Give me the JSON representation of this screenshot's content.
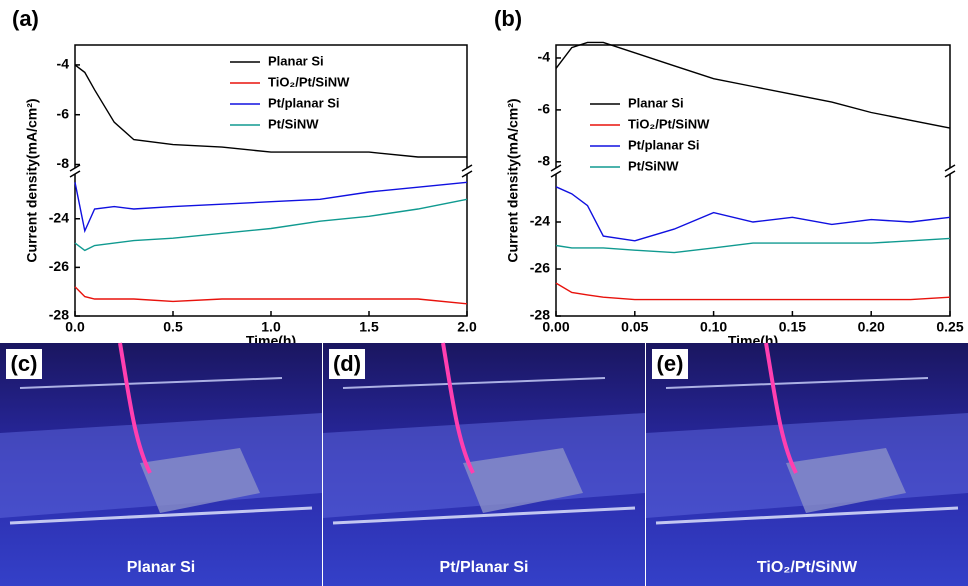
{
  "chart_data": [
    {
      "type": "line",
      "panel_label": "(a)",
      "x_label": "Time(h)",
      "y_label": "Current density(mA/cm²)",
      "x": [
        0,
        0.05,
        0.1,
        0.2,
        0.3,
        0.5,
        0.75,
        1.0,
        1.25,
        1.5,
        1.75,
        2.0
      ],
      "xlim": [
        0,
        2.0
      ],
      "xticks": [
        {
          "value": 0,
          "label": "0.0"
        },
        {
          "value": 0.5,
          "label": "0.5"
        },
        {
          "value": 1.0,
          "label": "1.0"
        },
        {
          "value": 1.5,
          "label": "1.5"
        },
        {
          "value": 2.0,
          "label": "2.0"
        }
      ],
      "ylim": [
        -28,
        -3.2
      ],
      "y_break": [
        -22.2,
        -8.1
      ],
      "yticks": [
        -28,
        -26,
        -24,
        -8,
        -6,
        -4
      ],
      "series": [
        {
          "name": "Planar Si",
          "color": "#000000",
          "values": [
            -4.0,
            -4.3,
            -5.0,
            -6.3,
            -7.0,
            -7.2,
            -7.3,
            -7.5,
            -7.5,
            -7.5,
            -7.7,
            -7.7
          ]
        },
        {
          "name": "TiO₂/Pt/SiNW",
          "color": "#e8120c",
          "values": [
            -26.8,
            -27.2,
            -27.3,
            -27.3,
            -27.3,
            -27.4,
            -27.3,
            -27.3,
            -27.3,
            -27.3,
            -27.3,
            -27.5
          ]
        },
        {
          "name": "Pt/planar Si",
          "color": "#1010e0",
          "values": [
            -22.5,
            -24.5,
            -23.6,
            -23.5,
            -23.6,
            -23.5,
            -23.4,
            -23.3,
            -23.2,
            -22.9,
            -22.7,
            -22.5
          ]
        },
        {
          "name": "Pt/SiNW",
          "color": "#109a90",
          "values": [
            -25.0,
            -25.3,
            -25.1,
            -25.0,
            -24.9,
            -24.8,
            -24.6,
            -24.4,
            -24.1,
            -23.9,
            -23.6,
            -23.2
          ]
        }
      ]
    },
    {
      "type": "line",
      "panel_label": "(b)",
      "x_label": "Time(h)",
      "y_label": "Current density(mA/cm²)",
      "x": [
        0,
        0.01,
        0.02,
        0.03,
        0.05,
        0.075,
        0.1,
        0.125,
        0.15,
        0.175,
        0.2,
        0.225,
        0.25
      ],
      "xlim": [
        0,
        0.25
      ],
      "xticks": [
        {
          "value": 0,
          "label": "0.00"
        },
        {
          "value": 0.05,
          "label": "0.05"
        },
        {
          "value": 0.1,
          "label": "0.10"
        },
        {
          "value": 0.15,
          "label": "0.15"
        },
        {
          "value": 0.2,
          "label": "0.20"
        },
        {
          "value": 0.25,
          "label": "0.25"
        }
      ],
      "ylim": [
        -28,
        -3.5
      ],
      "y_break": [
        -22,
        -8.2
      ],
      "yticks": [
        -28,
        -26,
        -24,
        -8,
        -6,
        -4
      ],
      "series": [
        {
          "name": "Planar Si",
          "color": "#000000",
          "values": [
            -4.4,
            -3.6,
            -3.4,
            -3.4,
            -3.8,
            -4.3,
            -4.8,
            -5.1,
            -5.4,
            -5.7,
            -6.1,
            -6.4,
            -6.7
          ]
        },
        {
          "name": "TiO₂/Pt/SiNW",
          "color": "#e8120c",
          "values": [
            -26.6,
            -27.0,
            -27.1,
            -27.2,
            -27.3,
            -27.3,
            -27.3,
            -27.3,
            -27.3,
            -27.3,
            -27.3,
            -27.3,
            -27.2
          ]
        },
        {
          "name": "Pt/planar Si",
          "color": "#1010e0",
          "values": [
            -22.5,
            -22.8,
            -23.3,
            -24.6,
            -24.8,
            -24.3,
            -23.6,
            -24.0,
            -23.8,
            -24.1,
            -23.9,
            -24.0,
            -23.8
          ]
        },
        {
          "name": "Pt/SiNW",
          "color": "#109a90",
          "values": [
            -25.0,
            -25.1,
            -25.1,
            -25.1,
            -25.2,
            -25.3,
            -25.1,
            -24.9,
            -24.9,
            -24.9,
            -24.9,
            -24.8,
            -24.7
          ]
        }
      ]
    }
  ],
  "photos": [
    {
      "label": "(c)",
      "caption": "Planar Si"
    },
    {
      "label": "(d)",
      "caption": "Pt/Planar Si"
    },
    {
      "label": "(e)",
      "caption": "TiO₂/Pt/SiNW"
    }
  ]
}
